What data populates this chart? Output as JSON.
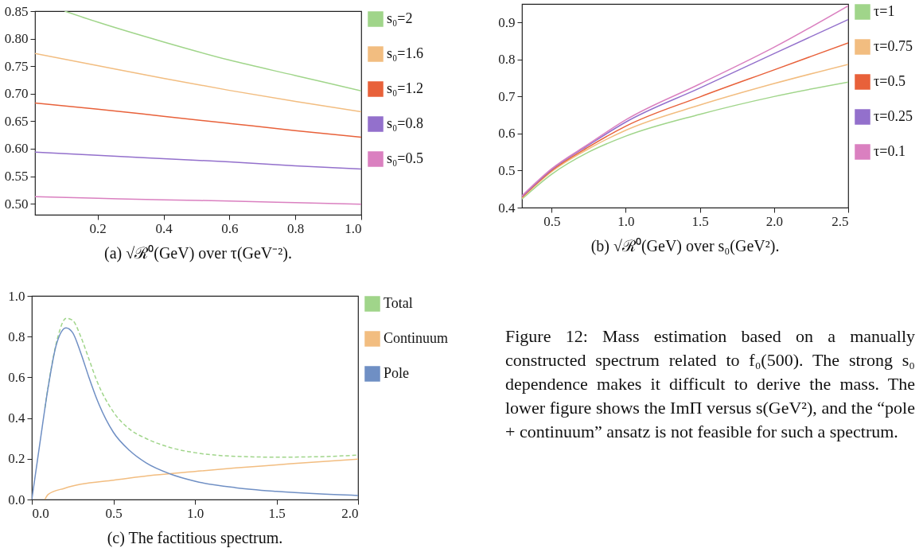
{
  "chart_data": [
    {
      "type": "line",
      "title": "(a) √ℛ⁰(GeV) over τ(GeV⁻²).",
      "x": [
        0.01,
        0.2,
        0.4,
        0.6,
        0.8,
        1.0
      ],
      "xlim": [
        0.01,
        1.0
      ],
      "xticks": [
        0.2,
        0.4,
        0.6,
        0.8,
        {
          "value": 1,
          "label": "1.0"
        }
      ],
      "ylim": [
        0.48,
        0.85
      ],
      "yticks": [
        {
          "value": 0.5,
          "label": "0.50"
        },
        0.55,
        {
          "value": 0.6,
          "label": "0.60"
        },
        0.65,
        {
          "value": 0.7,
          "label": "0.70"
        },
        0.75,
        {
          "value": 0.8,
          "label": "0.80"
        },
        0.85
      ],
      "legend": "right",
      "grid": false,
      "series": [
        {
          "name": "s₀=2",
          "color": "#a0d58a",
          "x": [
            0.1,
            0.2,
            0.4,
            0.6,
            0.8,
            1.0
          ],
          "values": [
            0.85,
            0.83,
            0.794,
            0.761,
            0.733,
            0.705
          ]
        },
        {
          "name": "s₀=1.6",
          "color": "#f2bd80",
          "values": [
            0.773,
            0.751,
            0.728,
            0.706,
            0.686,
            0.667
          ]
        },
        {
          "name": "s₀=1.2",
          "color": "#e8613a",
          "values": [
            0.683,
            0.672,
            0.659,
            0.646,
            0.633,
            0.621
          ]
        },
        {
          "name": "s₀=0.8",
          "color": "#9370cc",
          "values": [
            0.594,
            0.588,
            0.582,
            0.576,
            0.569,
            0.563
          ]
        },
        {
          "name": "s₀=0.5",
          "color": "#da80c0",
          "values": [
            0.513,
            0.51,
            0.507,
            0.505,
            0.502,
            0.499
          ]
        }
      ]
    },
    {
      "type": "line",
      "title": "(b) √ℛ⁰(GeV) over s₀(GeV²).",
      "x": [
        0.3,
        0.5,
        0.75,
        1.0,
        1.5,
        2.0,
        2.5
      ],
      "xlim": [
        0.3,
        2.5
      ],
      "xticks": [
        0.5,
        {
          "value": 1,
          "label": "1.0"
        },
        1.5,
        {
          "value": 2,
          "label": "2.0"
        },
        2.5
      ],
      "ylim": [
        0.4,
        0.95
      ],
      "yticks": [
        0.4,
        0.5,
        0.6,
        0.7,
        0.8,
        0.9
      ],
      "legend": "right",
      "grid": false,
      "series": [
        {
          "name": "τ=1",
          "color": "#a0d58a",
          "values": [
            0.423,
            0.49,
            0.55,
            0.593,
            0.652,
            0.7,
            0.739
          ]
        },
        {
          "name": "τ=0.75",
          "color": "#f2bd80",
          "values": [
            0.426,
            0.497,
            0.559,
            0.609,
            0.677,
            0.735,
            0.787
          ]
        },
        {
          "name": "τ=0.5",
          "color": "#e8613a",
          "values": [
            0.428,
            0.5,
            0.564,
            0.62,
            0.699,
            0.772,
            0.845
          ]
        },
        {
          "name": "τ=0.25",
          "color": "#9370cc",
          "values": [
            0.43,
            0.503,
            0.569,
            0.631,
            0.723,
            0.816,
            0.908
          ]
        },
        {
          "name": "τ=0.1",
          "color": "#da80c0",
          "values": [
            0.432,
            0.505,
            0.572,
            0.637,
            0.734,
            0.833,
            0.945
          ]
        }
      ]
    },
    {
      "type": "line",
      "title": "(c) The factitious spectrum.",
      "xlim": [
        0,
        2
      ],
      "xticks": [
        {
          "value": 0,
          "label": "0.0"
        },
        0.5,
        {
          "value": 1,
          "label": "1.0"
        },
        1.5,
        {
          "value": 2,
          "label": "2.0"
        }
      ],
      "ylim": [
        0,
        1
      ],
      "yticks": [
        {
          "value": 0,
          "label": "0.0"
        },
        0.2,
        0.4,
        0.6,
        0.8,
        {
          "value": 1,
          "label": "1.0"
        }
      ],
      "legend": "right",
      "grid": false,
      "series": [
        {
          "name": "Total",
          "color": "#a0d58a",
          "line_style": "dashed",
          "x": [
            0.08,
            0.12,
            0.16,
            0.21,
            0.25,
            0.3,
            0.35,
            0.4,
            0.5,
            0.6,
            0.7,
            0.85,
            1.0,
            1.25,
            1.5,
            1.75,
            2.0
          ],
          "values": [
            0.45,
            0.65,
            0.8,
            0.89,
            0.88,
            0.8,
            0.69,
            0.58,
            0.43,
            0.345,
            0.3,
            0.255,
            0.23,
            0.212,
            0.208,
            0.21,
            0.218
          ]
        },
        {
          "name": "Continuum",
          "color": "#f2bd80",
          "x": [
            0.08,
            0.1,
            0.2,
            0.3,
            0.5,
            0.75,
            1.0,
            1.25,
            1.5,
            1.75,
            2.0
          ],
          "values": [
            0,
            0.025,
            0.055,
            0.075,
            0.095,
            0.12,
            0.138,
            0.155,
            0.17,
            0.185,
            0.198
          ]
        },
        {
          "name": "Pole",
          "color": "#6f8fc4",
          "x": [
            0,
            0.05,
            0.1,
            0.15,
            0.21,
            0.25,
            0.3,
            0.35,
            0.4,
            0.5,
            0.6,
            0.7,
            0.85,
            1.0,
            1.25,
            1.5,
            1.75,
            2.0
          ],
          "values": [
            0,
            0.28,
            0.55,
            0.76,
            0.843,
            0.82,
            0.72,
            0.6,
            0.49,
            0.33,
            0.24,
            0.18,
            0.125,
            0.09,
            0.058,
            0.04,
            0.028,
            0.02
          ]
        }
      ]
    },
    {
      "type": "other",
      "annotations": [
        "Figure 12: Mass estimation based on a manually constructed spectrum related to f₀(500). The strong s₀ dependence makes it difficult to derive the mass. The lower figure shows the ImΠ versus s(GeV²), and the “pole + continuum” ansatz is not feasible for such a spectrum."
      ]
    }
  ]
}
